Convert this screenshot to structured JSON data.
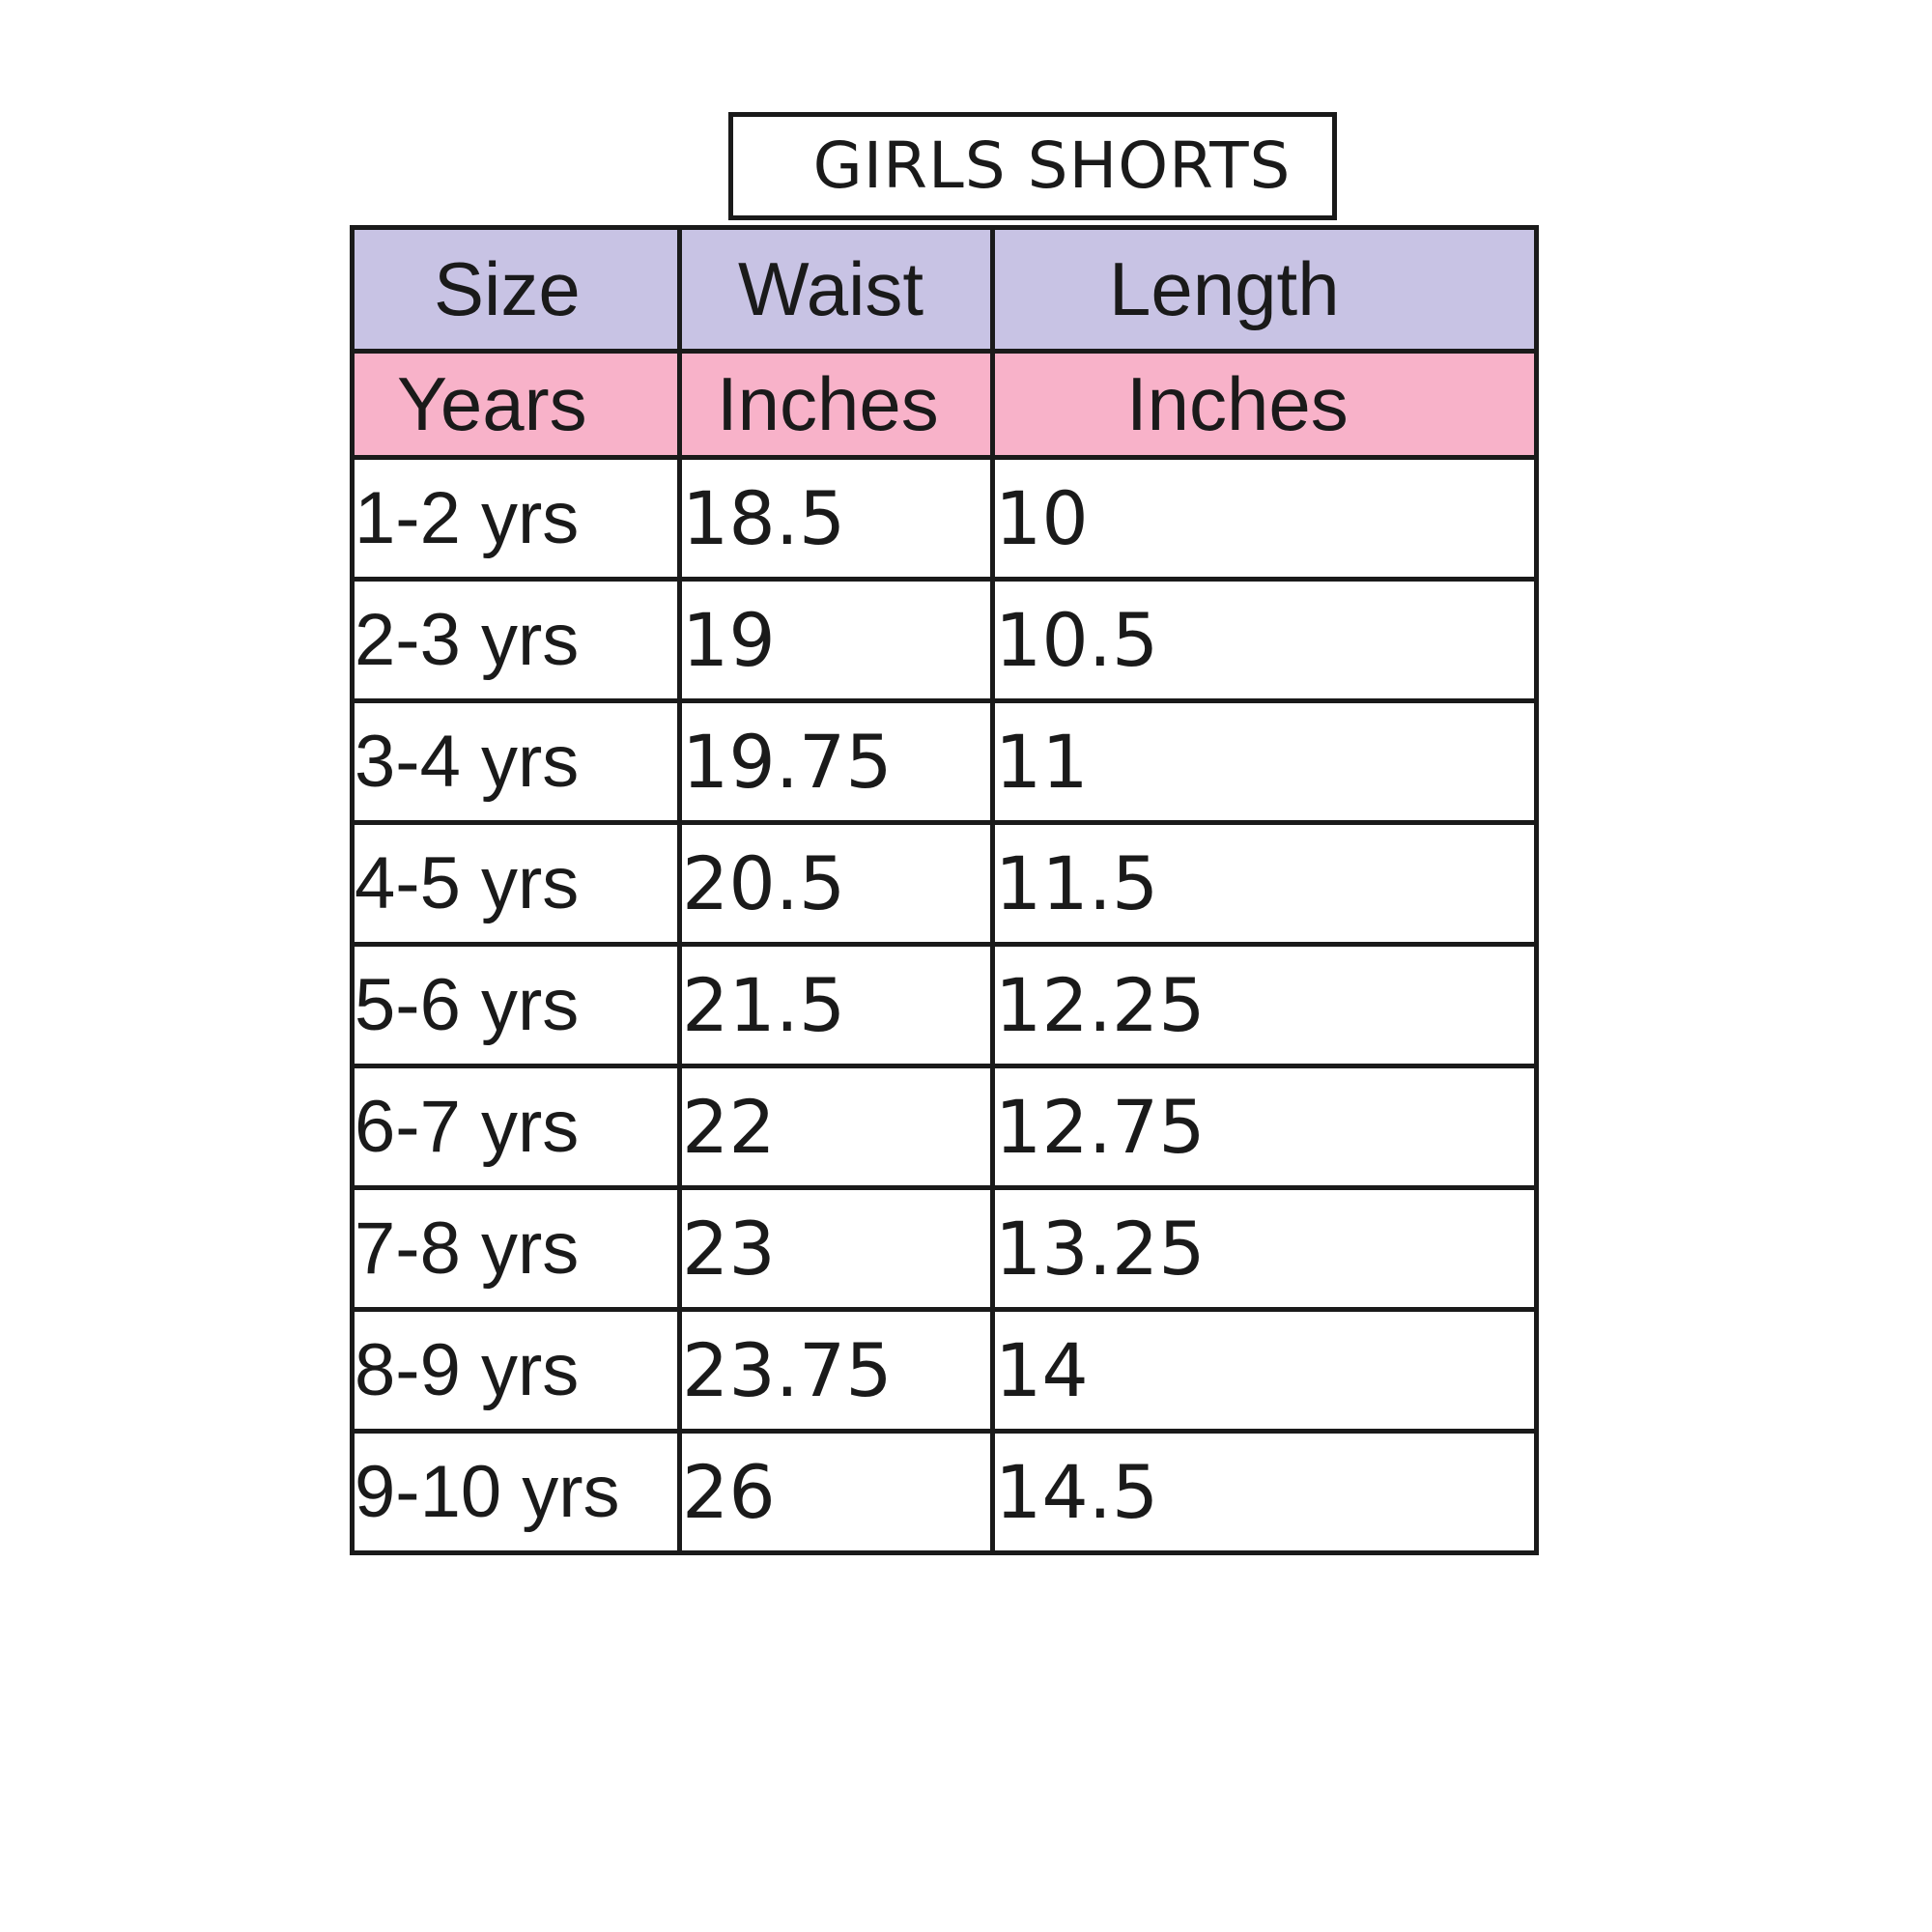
{
  "title": "GIRLS SHORTS",
  "table": {
    "headers": [
      "Size",
      "Waist",
      "Length"
    ],
    "units": [
      "Years",
      "Inches",
      "Inches"
    ],
    "rows": [
      {
        "size": "1-2 yrs",
        "waist": "18.5",
        "length": "10"
      },
      {
        "size": "2-3 yrs",
        "waist": "19",
        "length": "10.5"
      },
      {
        "size": "3-4 yrs",
        "waist": "19.75",
        "length": "11"
      },
      {
        "size": "4-5 yrs",
        "waist": "20.5",
        "length": "11.5"
      },
      {
        "size": "5-6 yrs",
        "waist": "21.5",
        "length": "12.25"
      },
      {
        "size": "6-7 yrs",
        "waist": "22",
        "length": "12.75"
      },
      {
        "size": "7-8 yrs",
        "waist": "23",
        "length": "13.25"
      },
      {
        "size": "8-9 yrs",
        "waist": "23.75",
        "length": "14"
      },
      {
        "size": "9-10 yrs",
        "waist": "26",
        "length": "14.5"
      }
    ]
  },
  "colors": {
    "header_bg": "#c8c3e4",
    "unit_bg": "#f8b2c9",
    "border": "#1a1a1a"
  }
}
